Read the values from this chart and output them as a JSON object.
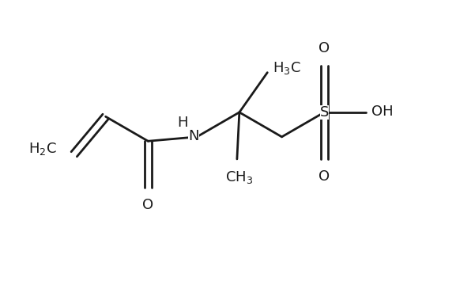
{
  "bg_color": "#ffffff",
  "line_color": "#1a1a1a",
  "line_width": 2.0,
  "font_size": 13,
  "font_family": "DejaVu Sans",
  "figsize": [
    6.01,
    3.6
  ],
  "dpi": 100,
  "xlim": [
    0,
    10
  ],
  "ylim": [
    0,
    6
  ]
}
